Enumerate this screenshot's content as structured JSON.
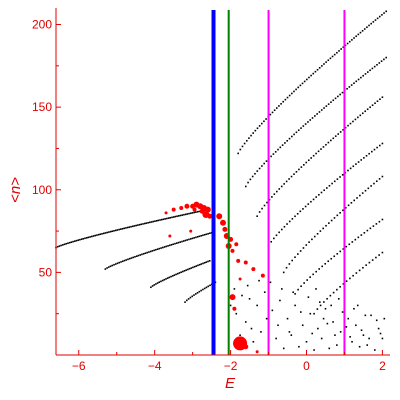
{
  "chart_data": {
    "type": "scatter",
    "title": "",
    "xlabel": "E",
    "ylabel": "<n>",
    "xlim": [
      -6.6,
      2.2
    ],
    "ylim": [
      0,
      210
    ],
    "grid": false,
    "x_ticks": [
      -6,
      -4,
      -2,
      0,
      2
    ],
    "x_tick_labels": [
      "−6",
      "−4",
      "−2",
      "0",
      "2"
    ],
    "y_ticks": [
      50,
      100,
      150,
      200
    ],
    "y_tick_labels": [
      "50",
      "100",
      "150",
      "200"
    ],
    "colors": {
      "axis": "#e00000",
      "small_points": "#000000",
      "large_points": "#ff0000",
      "line_blue": "#0000ff",
      "line_green": "#008000",
      "line_magenta": "#ff00ff"
    },
    "vertical_lines": [
      {
        "x": -2.45,
        "color": "#0000ff",
        "width": 4
      },
      {
        "x": -2.05,
        "color": "#008000",
        "width": 2
      },
      {
        "x": -1.0,
        "color": "#ff00ff",
        "width": 2
      },
      {
        "x": 1.0,
        "color": "#ff00ff",
        "width": 2
      }
    ],
    "black_series": [
      {
        "x_start": -6.6,
        "x_end": -2.6,
        "y_start": 65,
        "y_end": 88,
        "points": 90
      },
      {
        "x_start": -5.3,
        "x_end": -2.5,
        "y_start": 52,
        "y_end": 74,
        "points": 62
      },
      {
        "x_start": -4.1,
        "x_end": -2.55,
        "y_start": 41,
        "y_end": 57,
        "points": 36
      },
      {
        "x_start": -3.2,
        "x_end": -2.4,
        "y_start": 32,
        "y_end": 44,
        "points": 18
      },
      {
        "x_start": -1.8,
        "x_end": 2.1,
        "y_start": 122,
        "y_end": 208,
        "points": 70
      },
      {
        "x_start": -1.6,
        "x_end": 2.1,
        "y_start": 102,
        "y_end": 180,
        "points": 62
      },
      {
        "x_start": -1.3,
        "x_end": 2.0,
        "y_start": 84,
        "y_end": 156,
        "points": 52
      },
      {
        "x_start": -1.0,
        "x_end": 2.0,
        "y_start": 66,
        "y_end": 128,
        "points": 44
      },
      {
        "x_start": -0.6,
        "x_end": 2.0,
        "y_start": 50,
        "y_end": 108,
        "points": 36
      },
      {
        "x_start": -0.3,
        "x_end": 2.0,
        "y_start": 37,
        "y_end": 82,
        "points": 30
      },
      {
        "x_start": 0.2,
        "x_end": 2.0,
        "y_start": 25,
        "y_end": 62,
        "points": 22
      }
    ],
    "black_scatter": [
      [
        -1.9,
        40
      ],
      [
        -1.7,
        36
      ],
      [
        -1.5,
        34
      ],
      [
        -1.3,
        30
      ],
      [
        -1.1,
        38
      ],
      [
        -0.9,
        27
      ],
      [
        -0.7,
        33
      ],
      [
        -0.5,
        22
      ],
      [
        -0.3,
        30
      ],
      [
        -0.1,
        18
      ],
      [
        0.1,
        25
      ],
      [
        0.3,
        16
      ],
      [
        0.5,
        28
      ],
      [
        0.7,
        20
      ],
      [
        0.9,
        14
      ],
      [
        1.1,
        22
      ],
      [
        1.3,
        18
      ],
      [
        1.5,
        12
      ],
      [
        1.7,
        24
      ],
      [
        1.9,
        16
      ],
      [
        -1.6,
        20
      ],
      [
        -1.2,
        14
      ],
      [
        -0.8,
        10
      ],
      [
        -0.4,
        12
      ],
      [
        0.0,
        8
      ],
      [
        0.4,
        10
      ],
      [
        0.8,
        6
      ],
      [
        1.2,
        8
      ],
      [
        1.6,
        6
      ],
      [
        2.0,
        10
      ],
      [
        -1.4,
        8
      ],
      [
        -1.0,
        6
      ],
      [
        -0.6,
        4
      ],
      [
        -0.2,
        5
      ],
      [
        0.2,
        3
      ],
      [
        0.6,
        4
      ],
      [
        1.0,
        3
      ],
      [
        1.4,
        5
      ],
      [
        1.8,
        3
      ],
      [
        -2.0,
        30
      ],
      [
        -1.85,
        25
      ],
      [
        -1.55,
        42
      ],
      [
        -1.25,
        45
      ],
      [
        -0.95,
        44
      ],
      [
        -0.65,
        40
      ],
      [
        -0.35,
        38
      ],
      [
        0.05,
        35
      ],
      [
        0.35,
        32
      ],
      [
        0.65,
        30
      ],
      [
        0.95,
        26
      ],
      [
        1.25,
        28
      ],
      [
        1.55,
        24
      ],
      [
        1.85,
        21
      ],
      [
        -0.15,
        26
      ],
      [
        0.55,
        19
      ],
      [
        1.05,
        17
      ],
      [
        1.45,
        15
      ],
      [
        1.95,
        13
      ],
      [
        -1.75,
        12
      ],
      [
        -1.45,
        16
      ],
      [
        -1.05,
        22
      ],
      [
        -0.75,
        18
      ],
      [
        -0.45,
        14
      ],
      [
        0.15,
        13
      ],
      [
        0.45,
        22
      ],
      [
        0.75,
        12
      ],
      [
        1.15,
        11
      ],
      [
        1.65,
        10
      ],
      [
        2.05,
        22
      ],
      [
        1.35,
        30
      ],
      [
        0.85,
        34
      ],
      [
        0.25,
        40
      ]
    ],
    "red_points": [
      {
        "x": -3.5,
        "y": 88,
        "r": 2
      },
      {
        "x": -3.3,
        "y": 89,
        "r": 2
      },
      {
        "x": -3.15,
        "y": 90,
        "r": 2.5
      },
      {
        "x": -3.0,
        "y": 90,
        "r": 2.5
      },
      {
        "x": -2.9,
        "y": 91,
        "r": 3
      },
      {
        "x": -2.8,
        "y": 90,
        "r": 3
      },
      {
        "x": -2.7,
        "y": 89,
        "r": 3
      },
      {
        "x": -2.6,
        "y": 88,
        "r": 3
      },
      {
        "x": -2.75,
        "y": 87,
        "r": 2.5
      },
      {
        "x": -2.95,
        "y": 88,
        "r": 2
      },
      {
        "x": -2.65,
        "y": 85,
        "r": 3.5
      },
      {
        "x": -2.55,
        "y": 84,
        "r": 2.5
      },
      {
        "x": -2.3,
        "y": 84,
        "r": 3
      },
      {
        "x": -2.2,
        "y": 80,
        "r": 3
      },
      {
        "x": -2.15,
        "y": 76,
        "r": 2.5
      },
      {
        "x": -2.1,
        "y": 72,
        "r": 3
      },
      {
        "x": -2.05,
        "y": 66,
        "r": 3
      },
      {
        "x": -2.0,
        "y": 70,
        "r": 2.5
      },
      {
        "x": -1.95,
        "y": 63,
        "r": 2
      },
      {
        "x": -1.85,
        "y": 67,
        "r": 2
      },
      {
        "x": -1.8,
        "y": 57,
        "r": 2
      },
      {
        "x": -1.6,
        "y": 56,
        "r": 2
      },
      {
        "x": -1.4,
        "y": 52,
        "r": 2
      },
      {
        "x": -1.15,
        "y": 48,
        "r": 2
      },
      {
        "x": -3.7,
        "y": 86,
        "r": 1.5
      },
      {
        "x": -3.6,
        "y": 72,
        "r": 1.5
      },
      {
        "x": -3.05,
        "y": 75,
        "r": 1.5
      },
      {
        "x": -1.95,
        "y": 35,
        "r": 3
      },
      {
        "x": -1.75,
        "y": 46,
        "r": 1.5
      },
      {
        "x": -1.9,
        "y": 28,
        "r": 2
      },
      {
        "x": -1.75,
        "y": 7,
        "r": 7
      },
      {
        "x": -1.6,
        "y": 5,
        "r": 2.5
      },
      {
        "x": -1.3,
        "y": 2,
        "r": 1.5
      }
    ]
  }
}
